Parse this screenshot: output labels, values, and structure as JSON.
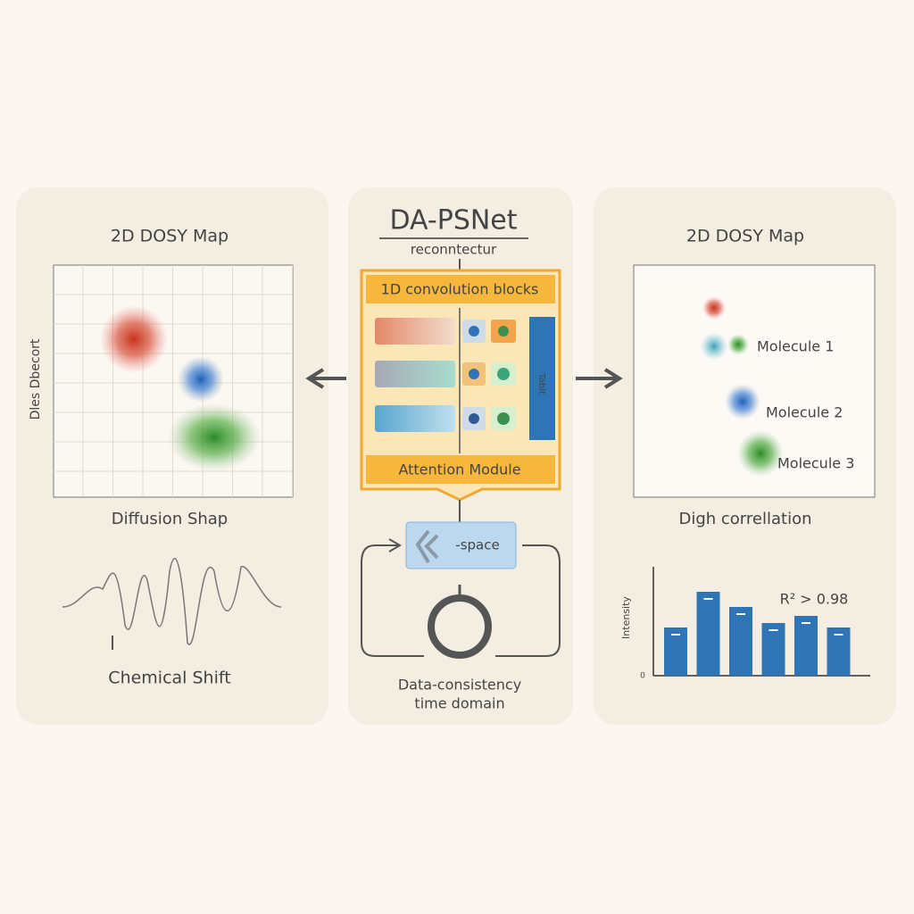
{
  "left_panel": {
    "title": "2D DOSY Map",
    "y_label": "Dles Dbecort",
    "x_label": "Diffusion Shap",
    "spectrum_label": "Chemical Shift"
  },
  "center_panel": {
    "title": "DA-PSNet",
    "subtitle": "reconntectur",
    "conv_header": "1D convolution blocks",
    "side_label": "Tablt",
    "attention": "Attention Module",
    "k_space": "-space",
    "footer": [
      "Data-consistency",
      "time domain"
    ]
  },
  "right_panel": {
    "title": "2D DOSY Map",
    "molecules": [
      "Molecule 1",
      "Molecule 2",
      "Molecule 3"
    ],
    "caption": "Digh correllation",
    "chart": {
      "y_label": "Intensity",
      "zero_tick": "0",
      "annotation": "R² > 0.98",
      "values": [
        5.4,
        9.4,
        7.7,
        5.9,
        6.7,
        5.4
      ],
      "color": "#2f74b5"
    }
  }
}
